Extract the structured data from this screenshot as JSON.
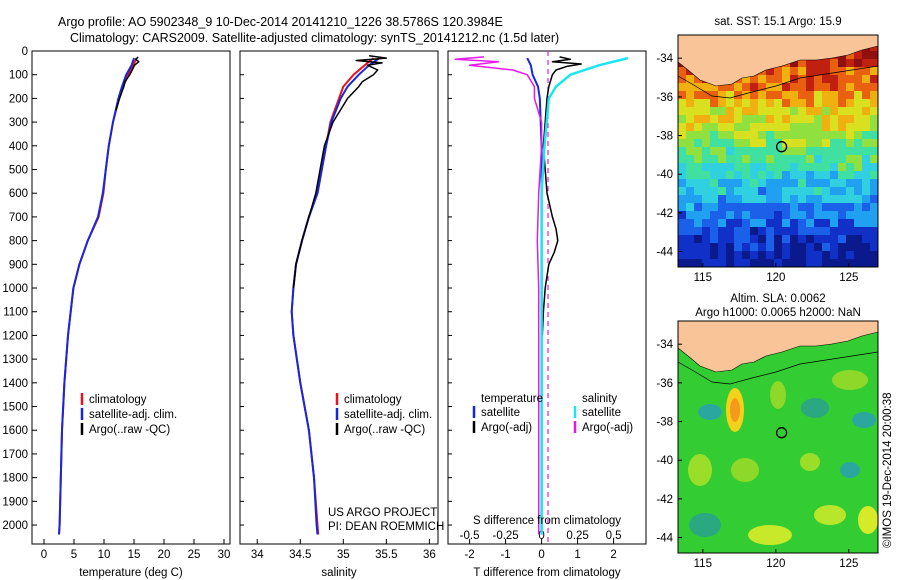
{
  "header": {
    "line1": "Argo profile: AO 5902348_9 10-Dec-2014 20141210_1226 38.5786S 120.3984E",
    "line2": "Climatology: CARS2009. Satellite-adjusted climatology: synTS_20141212.nc (1.5d later)"
  },
  "colors": {
    "climatology": "#e8141c",
    "satellite": "#1428e0",
    "argo": "#000000",
    "sat_salinity": "#19e6f0",
    "argo_salinity_adj": "#e619e6",
    "land": "#f8c498"
  },
  "chart_data": [
    {
      "type": "line",
      "id": "temperature",
      "xlabel": "temperature (deg C)",
      "xlim": [
        -2,
        31
      ],
      "ylim": [
        2080,
        0
      ],
      "xticks": [
        "0",
        "5",
        "10",
        "15",
        "20",
        "25",
        "30"
      ],
      "yticks": [
        "0",
        "100",
        "200",
        "300",
        "400",
        "500",
        "600",
        "700",
        "800",
        "900",
        "1000",
        "1100",
        "1200",
        "1300",
        "1400",
        "1500",
        "1600",
        "1700",
        "1800",
        "1900",
        "2000"
      ],
      "legend": [
        "climatology",
        "satellite-adj. clim.",
        "Argo(..raw -QC)"
      ],
      "series": [
        {
          "name": "climatology",
          "depth": [
            30,
            60,
            100,
            150,
            200,
            300,
            400,
            500,
            600,
            700,
            800,
            900,
            1000,
            1200,
            1400,
            1600,
            1800,
            2000,
            2040
          ],
          "values": [
            15.4,
            14.9,
            14.0,
            13.2,
            12.5,
            11.5,
            10.8,
            10.3,
            9.9,
            9.1,
            7.3,
            5.9,
            4.9,
            4.0,
            3.4,
            3.0,
            2.8,
            2.6,
            2.5
          ]
        },
        {
          "name": "satellite-adj. clim.",
          "depth": [
            30,
            60,
            100,
            150,
            200,
            300,
            400,
            500,
            600,
            700,
            800,
            900,
            1000,
            1200,
            1400,
            1600,
            1800,
            2000,
            2040
          ],
          "values": [
            15.0,
            14.6,
            13.7,
            13.0,
            12.4,
            11.5,
            10.8,
            10.3,
            9.8,
            9.0,
            7.3,
            5.9,
            4.9,
            4.0,
            3.4,
            3.0,
            2.8,
            2.6,
            2.5
          ]
        },
        {
          "name": "Argo(..raw -QC)",
          "depth": [
            25,
            35,
            45,
            60,
            80,
            100,
            130,
            150,
            200,
            250
          ],
          "values": [
            15.7,
            15.3,
            15.8,
            15.1,
            14.7,
            14.3,
            13.5,
            13.3,
            12.6,
            12.0
          ]
        }
      ]
    },
    {
      "type": "line",
      "id": "salinity",
      "xlabel": "salinity",
      "xlim": [
        33.8,
        36.1
      ],
      "ylim": [
        2080,
        0
      ],
      "xticks": [
        "34",
        "34.5",
        "35",
        "35.5",
        "36"
      ],
      "legend": [
        "climatology",
        "satellite-adj. clim.",
        "Argo(..raw -QC)"
      ],
      "annotations": [
        "US ARGO PROJECT",
        "PI: DEAN ROEMMICH"
      ],
      "series": [
        {
          "name": "climatology",
          "depth": [
            30,
            60,
            100,
            150,
            200,
            300,
            400,
            500,
            600,
            700,
            800,
            900,
            1000,
            1100,
            1200,
            1400,
            1600,
            1800,
            2000,
            2040
          ],
          "values": [
            35.35,
            35.25,
            35.12,
            35.0,
            34.95,
            34.85,
            34.8,
            34.75,
            34.7,
            34.6,
            34.52,
            34.45,
            34.42,
            34.4,
            34.42,
            34.5,
            34.6,
            34.66,
            34.7,
            34.71
          ]
        },
        {
          "name": "satellite-adj. clim.",
          "depth": [
            30,
            60,
            100,
            150,
            200,
            300,
            400,
            500,
            600,
            700,
            800,
            900,
            1000,
            1100,
            1200,
            1400,
            1600,
            1800,
            2000,
            2040
          ],
          "values": [
            35.42,
            35.3,
            35.18,
            35.05,
            34.97,
            34.86,
            34.8,
            34.75,
            34.7,
            34.6,
            34.52,
            34.45,
            34.42,
            34.4,
            34.42,
            34.5,
            34.6,
            34.66,
            34.69,
            34.7
          ]
        },
        {
          "name": "Argo(..raw -QC)",
          "depth": [
            20,
            30,
            40,
            50,
            60,
            80,
            100,
            130,
            150,
            200,
            300,
            400,
            500,
            600,
            700,
            800,
            900,
            1000
          ],
          "values": [
            35.3,
            35.5,
            35.15,
            35.45,
            35.28,
            35.4,
            35.35,
            35.22,
            35.18,
            35.05,
            34.88,
            34.78,
            34.73,
            34.68,
            34.6,
            34.52,
            34.45,
            34.42
          ]
        }
      ]
    },
    {
      "type": "line",
      "id": "difference",
      "xlabel": "T difference from climatology",
      "xlabel2": "S difference from climatology",
      "xlim": [
        -2.6,
        2.9
      ],
      "ylim": [
        2080,
        0
      ],
      "xticks": [
        "-2",
        "-1",
        "0",
        "1",
        "2"
      ],
      "xticks2": [
        "-0.5",
        "-0.25",
        "0",
        "0.25",
        "0.5"
      ],
      "legend_headers": [
        "temperature",
        "salinity"
      ],
      "legend": [
        "satellite",
        "Argo(-adj)",
        "satellite",
        "Argo(-adj)"
      ],
      "series": [
        {
          "name": "temperature satellite",
          "depth": [
            30,
            60,
            100,
            150,
            200,
            400,
            600,
            800,
            1000,
            1200,
            1600,
            2000,
            2040
          ],
          "values": [
            -0.4,
            -0.3,
            -0.25,
            -0.1,
            -0.05,
            0,
            0,
            0,
            0,
            0,
            0,
            0,
            0
          ]
        },
        {
          "name": "temperature Argo(-adj)",
          "depth": [
            25,
            35,
            45,
            55,
            65,
            80,
            100,
            150,
            200,
            300,
            400,
            500,
            600,
            700,
            750,
            800,
            850,
            900,
            1000,
            1100,
            1200
          ],
          "values": [
            0.5,
            0.8,
            0.3,
            1.1,
            0.7,
            0.4,
            0.3,
            0.2,
            0.15,
            0.1,
            0.05,
            0.1,
            0.15,
            0.3,
            0.4,
            0.45,
            0.35,
            0.2,
            0.1,
            0.05,
            0.02
          ]
        },
        {
          "name": "salinity satellite",
          "depth": [
            30,
            60,
            100,
            150,
            200,
            400,
            600,
            800,
            1000,
            1400,
            2000,
            2040
          ],
          "values": [
            0.6,
            0.4,
            0.2,
            0.1,
            0.05,
            0.02,
            0,
            0,
            0,
            0,
            0,
            0
          ]
        },
        {
          "name": "salinity Argo(-adj)",
          "depth": [
            25,
            35,
            45,
            60,
            80,
            100,
            150,
            200,
            300,
            400,
            600,
            800,
            1000,
            1400,
            1800,
            2040
          ],
          "values": [
            -0.4,
            -0.6,
            -0.3,
            -0.5,
            -0.2,
            -0.1,
            -0.05,
            -0.05,
            0,
            0,
            -0.02,
            -0.03,
            -0.02,
            -0.02,
            -0.02,
            -0.02
          ]
        }
      ]
    },
    {
      "type": "heatmap",
      "id": "sst_map",
      "title": "sat. SST: 15.1  Argo: 15.9",
      "xticks": [
        "115",
        "120",
        "125"
      ],
      "yticks": [
        "-34",
        "-36",
        "-38",
        "-40",
        "-42",
        "-44"
      ],
      "xlim": [
        113.3,
        127
      ],
      "ylim": [
        -44.8,
        -32.8
      ],
      "marker_lon": 120.4,
      "marker_lat": -38.58
    },
    {
      "type": "heatmap",
      "id": "sla_map",
      "title": "Altim. SLA: 0.0062",
      "subtitle": "Argo h1000: 0.0065 h2000: NaN",
      "xticks": [
        "115",
        "120",
        "125"
      ],
      "yticks": [
        "-34",
        "-36",
        "-38",
        "-40",
        "-42",
        "-44"
      ],
      "xlim": [
        113.3,
        127
      ],
      "ylim": [
        -44.8,
        -32.8
      ],
      "marker_lon": 120.4,
      "marker_lat": -38.58
    }
  ],
  "credit": "©IMOS 19-Dec-2014 20:00:38"
}
